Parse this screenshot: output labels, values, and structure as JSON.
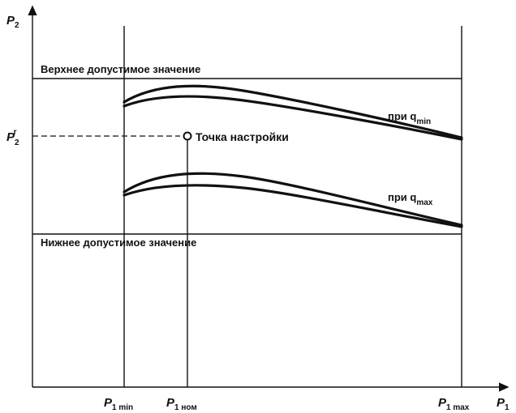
{
  "diagram": {
    "y_axis_label": "P",
    "y_axis_sub": "2",
    "x_axis_label": "P",
    "x_axis_sub": "1",
    "upper_limit_label": "Верхнее допустимое значение",
    "lower_limit_label": "Нижнее допустимое значение",
    "setpoint_y_label": "P",
    "setpoint_y_sub": "2",
    "setpoint_y_sup": "r",
    "setpoint_point_label": "Точка настройки",
    "curve_qmin_label": "при q",
    "curve_qmin_sub": "min",
    "curve_qmax_label": "при q",
    "curve_qmax_sub": "max",
    "x_tick_min_label": "P",
    "x_tick_min_sub": "1 min",
    "x_tick_nom_label": "P",
    "x_tick_nom_sub": "1 ном",
    "x_tick_max_label": "P",
    "x_tick_max_sub": "1 max"
  }
}
